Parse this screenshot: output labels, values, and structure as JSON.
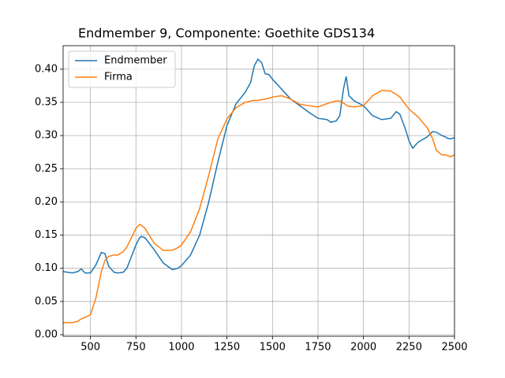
{
  "chart_data": {
    "type": "line",
    "title": "Endmember 9, Componente: Goethite GDS134",
    "x": [
      350,
      400,
      430,
      450,
      470,
      500,
      530,
      560,
      580,
      600,
      630,
      650,
      680,
      700,
      750,
      770,
      780,
      800,
      850,
      900,
      950,
      980,
      1000,
      1050,
      1100,
      1150,
      1200,
      1250,
      1300,
      1350,
      1380,
      1400,
      1420,
      1440,
      1460,
      1480,
      1500,
      1550,
      1600,
      1650,
      1700,
      1750,
      1800,
      1820,
      1850,
      1870,
      1890,
      1905,
      1920,
      1950,
      2000,
      2050,
      2100,
      2150,
      2180,
      2200,
      2230,
      2250,
      2270,
      2300,
      2350,
      2380,
      2400,
      2430,
      2450,
      2460,
      2480,
      2500
    ],
    "series": [
      {
        "name": "Endmember",
        "color": "#1f77b4",
        "values": [
          0.095,
          0.093,
          0.095,
          0.099,
          0.093,
          0.093,
          0.105,
          0.124,
          0.122,
          0.103,
          0.094,
          0.093,
          0.094,
          0.1,
          0.135,
          0.146,
          0.148,
          0.146,
          0.128,
          0.108,
          0.098,
          0.1,
          0.104,
          0.12,
          0.15,
          0.2,
          0.26,
          0.315,
          0.348,
          0.365,
          0.38,
          0.405,
          0.415,
          0.41,
          0.393,
          0.392,
          0.385,
          0.37,
          0.355,
          0.345,
          0.335,
          0.326,
          0.324,
          0.32,
          0.322,
          0.33,
          0.37,
          0.389,
          0.36,
          0.352,
          0.345,
          0.33,
          0.324,
          0.326,
          0.336,
          0.332,
          0.31,
          0.292,
          0.281,
          0.29,
          0.298,
          0.306,
          0.305,
          0.3,
          0.298,
          0.296,
          0.295,
          0.297
        ]
      },
      {
        "name": "Firma",
        "color": "#ff7f0e",
        "values": [
          0.018,
          0.018,
          0.02,
          0.024,
          0.026,
          0.03,
          0.055,
          0.095,
          0.112,
          0.118,
          0.12,
          0.12,
          0.125,
          0.132,
          0.16,
          0.166,
          0.165,
          0.16,
          0.138,
          0.127,
          0.127,
          0.131,
          0.135,
          0.155,
          0.19,
          0.24,
          0.295,
          0.325,
          0.342,
          0.35,
          0.352,
          0.353,
          0.353,
          0.354,
          0.355,
          0.356,
          0.358,
          0.36,
          0.355,
          0.347,
          0.345,
          0.343,
          0.348,
          0.35,
          0.352,
          0.352,
          0.349,
          0.346,
          0.344,
          0.343,
          0.345,
          0.36,
          0.368,
          0.367,
          0.362,
          0.358,
          0.347,
          0.34,
          0.335,
          0.328,
          0.312,
          0.295,
          0.278,
          0.271,
          0.271,
          0.27,
          0.268,
          0.271
        ]
      }
    ],
    "xlim": [
      350,
      2500
    ],
    "xticks": [
      500,
      750,
      1000,
      1250,
      1500,
      1750,
      2000,
      2250,
      2500
    ],
    "ylim": [
      -0.0024,
      0.4354
    ],
    "yticks": [
      {
        "value": 0,
        "label": "0.00"
      },
      {
        "value": 0.05,
        "label": "0.05"
      },
      {
        "value": 0.1,
        "label": "0.10"
      },
      {
        "value": 0.15,
        "label": "0.15"
      },
      {
        "value": 0.2,
        "label": "0.20"
      },
      {
        "value": 0.25,
        "label": "0.25"
      },
      {
        "value": 0.3,
        "label": "0.30"
      },
      {
        "value": 0.35,
        "label": "0.35"
      },
      {
        "value": 0.4,
        "label": "0.40"
      }
    ],
    "grid": true,
    "legend": "upper left"
  }
}
